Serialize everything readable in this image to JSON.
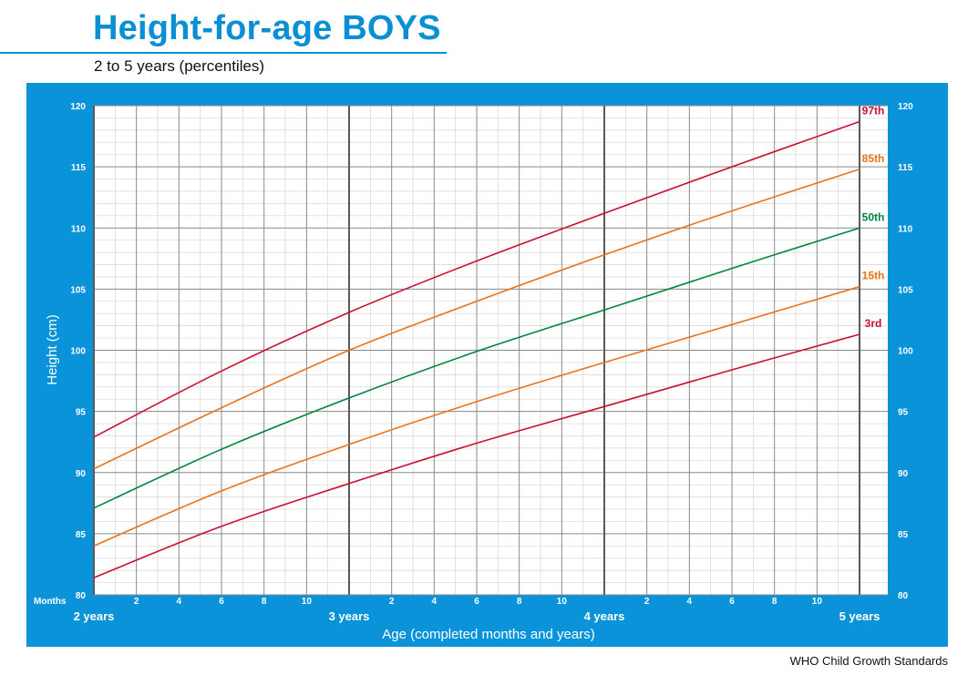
{
  "header": {
    "title": "Height-for-age BOYS",
    "subtitle": "2 to 5 years (percentiles)"
  },
  "footer": {
    "source": "WHO Child Growth Standards"
  },
  "colors": {
    "panel": "#0a93d8",
    "grid_minor": "#d6d6d6",
    "grid_major": "#8a8a8a",
    "grid_year": "#5a5a5a",
    "red": "#c8102e",
    "orange": "#e8731c",
    "green": "#00843d"
  },
  "chart_data": {
    "type": "line",
    "xlabel": "Age (completed months and years)",
    "ylabel": "Height (cm)",
    "x_unit_label": "Months",
    "xlim": [
      24,
      60
    ],
    "ylim": [
      80,
      120
    ],
    "y_ticks": [
      80,
      85,
      90,
      95,
      100,
      105,
      110,
      115,
      120
    ],
    "month_ticks": [
      26,
      28,
      30,
      32,
      34,
      38,
      40,
      42,
      44,
      46,
      50,
      52,
      54,
      56,
      58
    ],
    "month_tick_labels": [
      "2",
      "4",
      "6",
      "8",
      "10",
      "2",
      "4",
      "6",
      "8",
      "10",
      "2",
      "4",
      "6",
      "8",
      "10"
    ],
    "year_ticks": [
      24,
      36,
      48,
      60
    ],
    "year_tick_labels": [
      "2 years",
      "3 years",
      "4 years",
      "5 years"
    ],
    "grid": true,
    "x": [
      24,
      30,
      36,
      42,
      48,
      54,
      60
    ],
    "series": [
      {
        "name": "97th",
        "color": "red",
        "values": [
          92.9,
          98.3,
          103.1,
          107.3,
          111.2,
          115.0,
          118.7
        ]
      },
      {
        "name": "85th",
        "color": "orange",
        "values": [
          90.3,
          95.3,
          100.0,
          104.0,
          107.8,
          111.4,
          114.8
        ]
      },
      {
        "name": "50th",
        "color": "green",
        "values": [
          87.1,
          91.9,
          96.1,
          99.9,
          103.3,
          106.7,
          110.0
        ]
      },
      {
        "name": "15th",
        "color": "orange",
        "values": [
          84.0,
          88.5,
          92.3,
          95.8,
          99.0,
          102.1,
          105.2
        ]
      },
      {
        "name": "3rd",
        "color": "red",
        "values": [
          81.4,
          85.6,
          89.1,
          92.4,
          95.4,
          98.4,
          101.3
        ]
      }
    ]
  }
}
